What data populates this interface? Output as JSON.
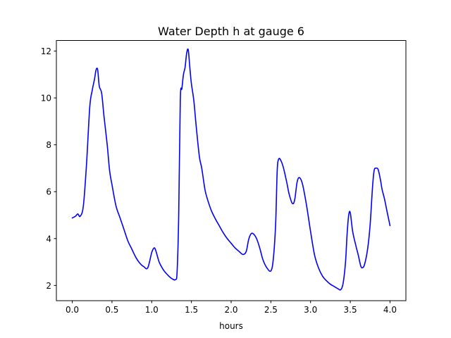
{
  "chart_data": {
    "type": "line",
    "title": "Water Depth h at gauge 6",
    "xlabel": "hours",
    "ylabel": "",
    "xlim": [
      -0.2,
      4.2
    ],
    "ylim": [
      1.35,
      12.45
    ],
    "xticks": [
      0.0,
      0.5,
      1.0,
      1.5,
      2.0,
      2.5,
      3.0,
      3.5,
      4.0
    ],
    "xtick_labels": [
      "0.0",
      "0.5",
      "1.0",
      "1.5",
      "2.0",
      "2.5",
      "3.0",
      "3.5",
      "4.0"
    ],
    "yticks": [
      2,
      4,
      6,
      8,
      10,
      12
    ],
    "ytick_labels": [
      "2",
      "4",
      "6",
      "8",
      "10",
      "12"
    ],
    "grid": false,
    "series": [
      {
        "color": "#0000ff",
        "x": [
          0.0,
          0.04,
          0.07,
          0.1,
          0.14,
          0.18,
          0.22,
          0.25,
          0.28,
          0.3,
          0.32,
          0.34,
          0.37,
          0.4,
          0.44,
          0.47,
          0.5,
          0.55,
          0.6,
          0.65,
          0.7,
          0.75,
          0.8,
          0.85,
          0.9,
          0.95,
          1.0,
          1.03,
          1.05,
          1.08,
          1.1,
          1.15,
          1.2,
          1.25,
          1.3,
          1.32,
          1.34,
          1.36,
          1.38,
          1.4,
          1.42,
          1.44,
          1.46,
          1.48,
          1.5,
          1.53,
          1.56,
          1.6,
          1.63,
          1.67,
          1.7,
          1.75,
          1.8,
          1.85,
          1.9,
          1.95,
          2.0,
          2.05,
          2.1,
          2.15,
          2.19,
          2.22,
          2.25,
          2.28,
          2.32,
          2.36,
          2.4,
          2.45,
          2.5,
          2.53,
          2.56,
          2.58,
          2.6,
          2.63,
          2.66,
          2.7,
          2.73,
          2.77,
          2.8,
          2.83,
          2.86,
          2.9,
          2.95,
          3.0,
          3.05,
          3.1,
          3.15,
          3.2,
          3.25,
          3.3,
          3.35,
          3.38,
          3.41,
          3.44,
          3.46,
          3.48,
          3.5,
          3.53,
          3.57,
          3.6,
          3.63,
          3.65,
          3.68,
          3.72,
          3.75,
          3.78,
          3.8,
          3.82,
          3.85,
          3.88,
          3.9,
          3.93,
          3.96,
          4.0
        ],
        "y": [
          4.88,
          4.95,
          5.05,
          4.95,
          5.4,
          7.2,
          9.6,
          10.3,
          10.8,
          11.2,
          11.2,
          10.5,
          10.2,
          9.2,
          8.0,
          6.9,
          6.3,
          5.4,
          4.9,
          4.4,
          3.9,
          3.55,
          3.2,
          2.95,
          2.8,
          2.75,
          3.4,
          3.6,
          3.5,
          3.15,
          2.95,
          2.65,
          2.45,
          2.3,
          2.25,
          2.6,
          5.0,
          9.9,
          10.4,
          11.0,
          11.3,
          11.9,
          12.05,
          11.3,
          10.6,
          9.9,
          8.8,
          7.5,
          7.0,
          6.1,
          5.7,
          5.2,
          4.85,
          4.55,
          4.25,
          4.0,
          3.8,
          3.6,
          3.45,
          3.32,
          3.45,
          3.95,
          4.2,
          4.2,
          4.0,
          3.6,
          3.1,
          2.75,
          2.62,
          3.1,
          4.6,
          6.9,
          7.4,
          7.3,
          7.0,
          6.4,
          5.9,
          5.5,
          5.65,
          6.4,
          6.6,
          6.3,
          5.4,
          4.3,
          3.3,
          2.75,
          2.4,
          2.2,
          2.05,
          1.95,
          1.85,
          1.82,
          2.1,
          3.0,
          4.2,
          5.0,
          5.1,
          4.3,
          3.7,
          3.3,
          2.85,
          2.75,
          2.9,
          3.6,
          4.6,
          6.2,
          6.9,
          7.0,
          6.95,
          6.5,
          6.1,
          5.7,
          5.2,
          4.55
        ]
      }
    ]
  }
}
